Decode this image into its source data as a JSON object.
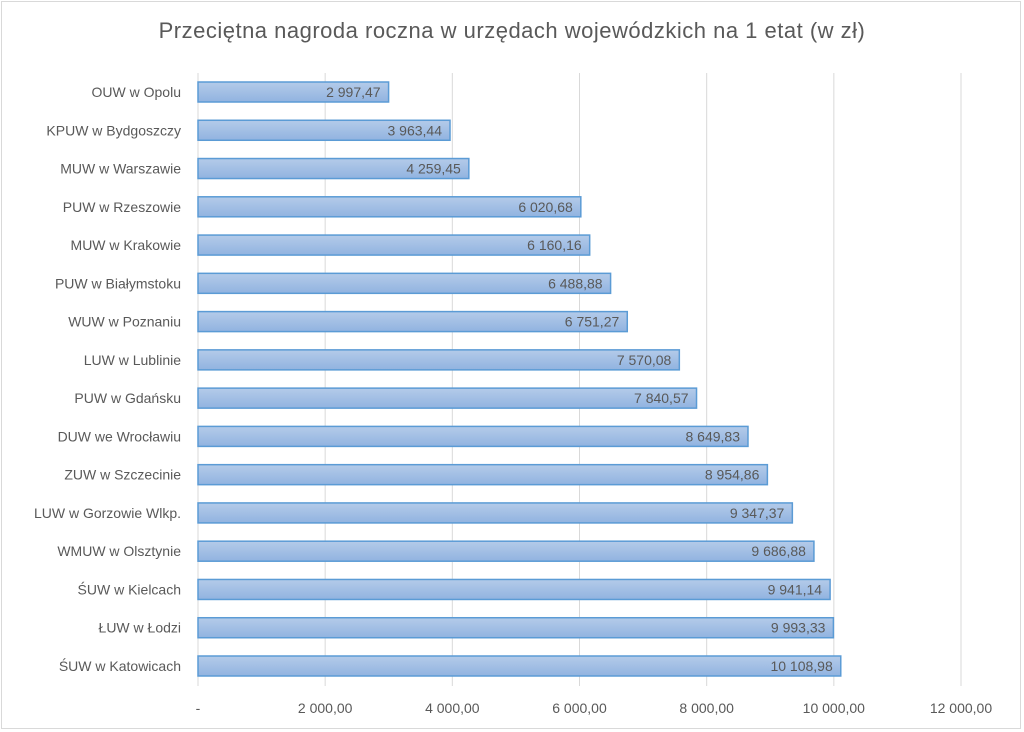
{
  "chart_data": {
    "type": "bar",
    "orientation": "horizontal",
    "title": "Przeciętna nagroda roczna w urzędach wojewódzkich na 1 etat (w zł)",
    "categories": [
      "OUW w Opolu",
      "KPUW w Bydgoszczy",
      "MUW w Warszawie",
      "PUW w Rzeszowie",
      "MUW w Krakowie",
      "PUW w Białymstoku",
      "WUW w Poznaniu",
      "LUW w Lublinie",
      "PUW w Gdańsku",
      "DUW we Wrocławiu",
      "ZUW w Szczecinie",
      "LUW w Gorzowie Wlkp.",
      "WMUW w Olsztynie",
      "ŚUW w Kielcach",
      "ŁUW w Łodzi",
      "ŚUW w Katowicach"
    ],
    "values": [
      2997.47,
      3963.44,
      4259.45,
      6020.68,
      6160.16,
      6488.88,
      6751.27,
      7570.08,
      7840.57,
      8649.83,
      8954.86,
      9347.37,
      9686.88,
      9941.14,
      9993.33,
      10108.98
    ],
    "data_labels": [
      "2 997,47",
      "3 963,44",
      "4 259,45",
      "6 020,68",
      "6 160,16",
      "6 488,88",
      "6 751,27",
      "7 570,08",
      "7 840,57",
      "8 649,83",
      "8 954,86",
      "9 347,37",
      "9 686,88",
      "9 941,14",
      "9 993,33",
      "10 108,98"
    ],
    "xlim": [
      0,
      12000
    ],
    "x_ticks": [
      0,
      2000,
      4000,
      6000,
      8000,
      10000,
      12000
    ],
    "x_tick_labels": [
      "-",
      "2 000,00",
      "4 000,00",
      "6 000,00",
      "8 000,00",
      "10 000,00",
      "12 000,00"
    ],
    "grid": true,
    "legend": "none",
    "colors": {
      "bar_fill_top": "#b4cbe9",
      "bar_fill_bottom": "#91b3e0",
      "bar_border": "#5b9bd5",
      "grid": "#d9d9d9",
      "text": "#595959"
    }
  }
}
